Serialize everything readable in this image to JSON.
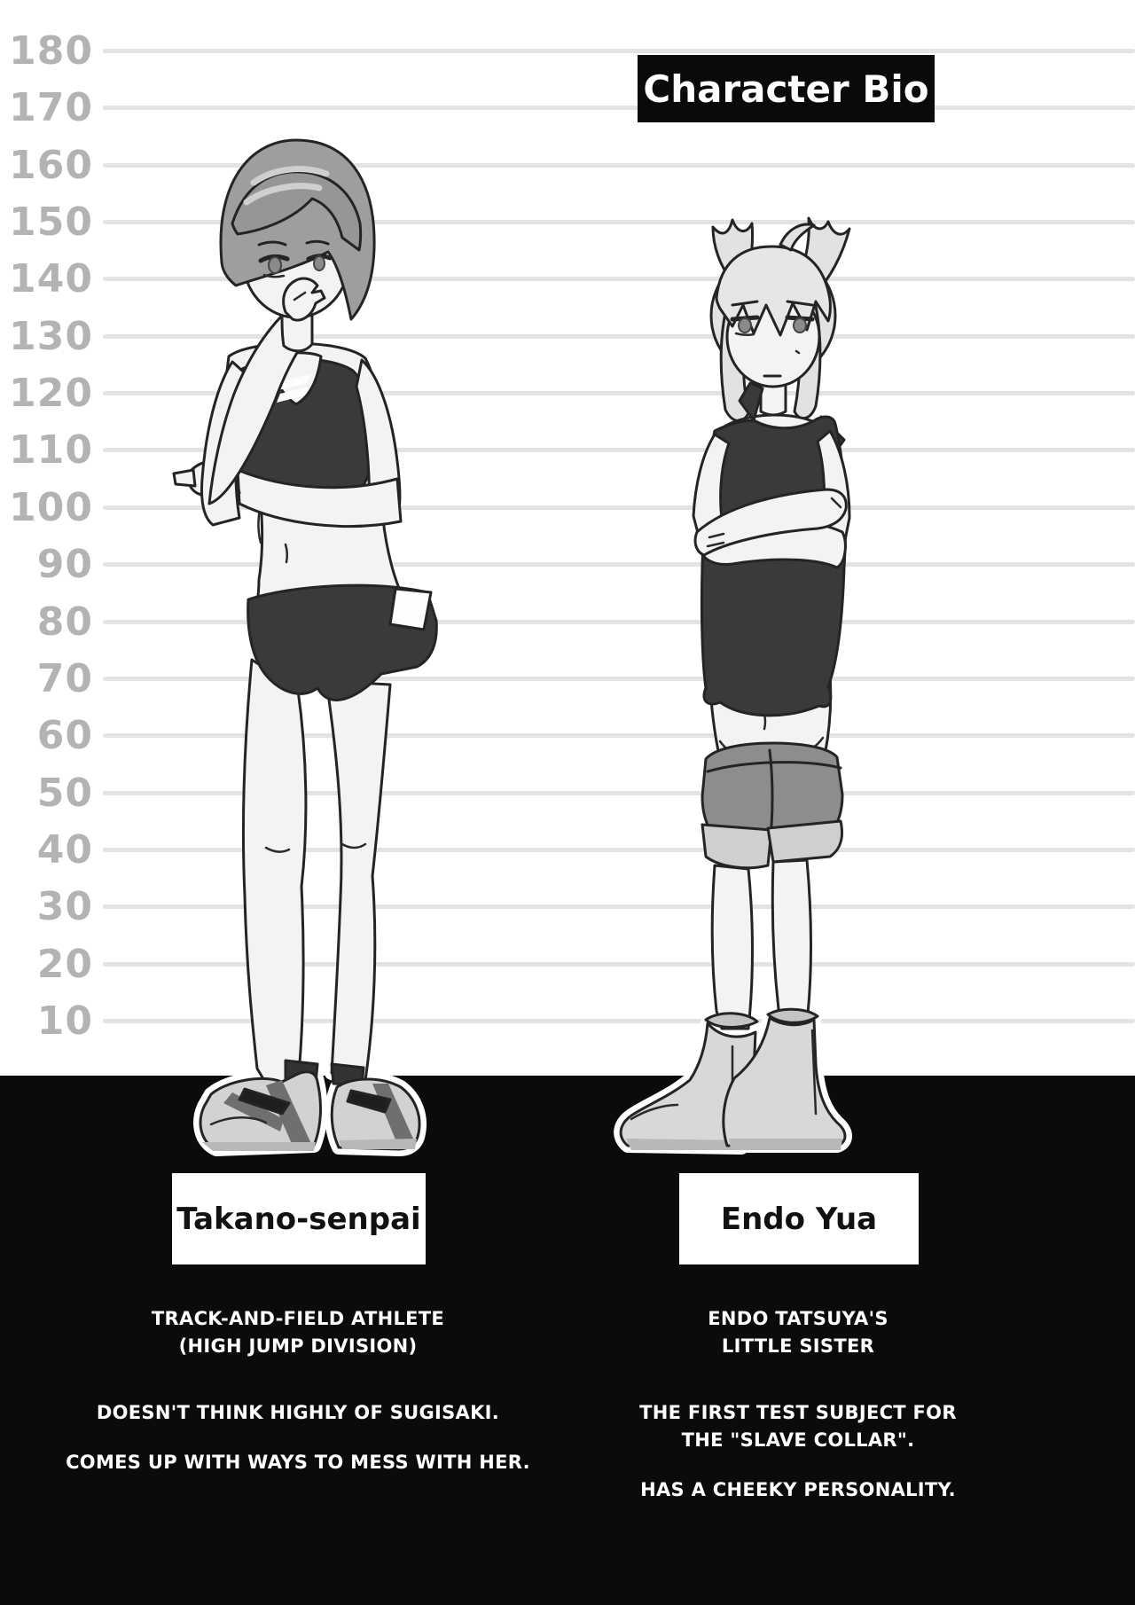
{
  "title": {
    "label": "Character Bio"
  },
  "height_chart": {
    "values": [
      180,
      170,
      160,
      150,
      140,
      130,
      120,
      110,
      100,
      90,
      80,
      70,
      60,
      50,
      40,
      30,
      20,
      10
    ]
  },
  "characters": [
    {
      "name": "Takano-senpai",
      "figure": "tall girl, short bob hair, black sports bra and briefs, sneakers, finger at lips",
      "bio_paragraphs": [
        [
          "TRACK-AND-FIELD ATHLETE",
          "(HIGH JUMP DIVISION)"
        ],
        [
          "DOESN'T THINK HIGHLY OF SUGISAKI."
        ],
        [
          "COMES UP WITH WAYS TO MESS WITH HER."
        ]
      ]
    },
    {
      "name": "Endo Yua",
      "figure": "short girl, light twin-tail hair, dark tank top, gray shorts, ankle boots, arms crossed",
      "bio_paragraphs": [
        [
          "ENDO TATSUYA'S",
          "LITTLE SISTER"
        ],
        [
          "THE FIRST TEST SUBJECT FOR",
          "THE \"SLAVE COLLAR\"."
        ],
        [
          "HAS A CHEEKY PERSONALITY."
        ]
      ]
    }
  ],
  "colors": {
    "background": "#ffffff",
    "bottom_band": "#0b0b0b",
    "ruler_line": "#e3e3e3",
    "ruler_number": "#b3b3b3",
    "title_bg": "#0a0a0a",
    "title_text": "#ffffff",
    "nameplate_bg": "#ffffff",
    "nameplate_text": "#111111",
    "bio_text": "#ffffff",
    "figure_dark_clothing": "#3a3a3a",
    "figure_gray_shorts": "#8d8d8d"
  }
}
